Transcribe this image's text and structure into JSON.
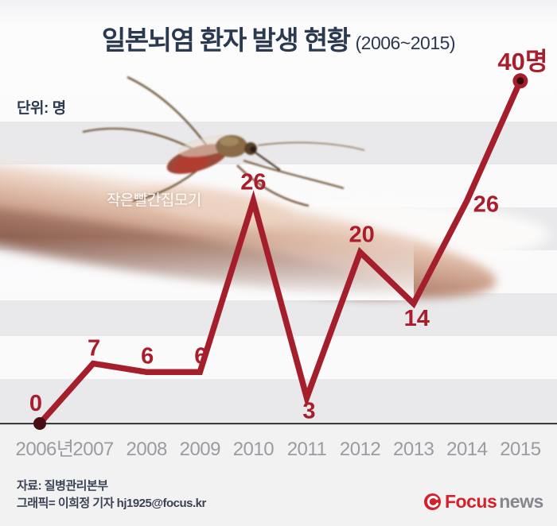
{
  "title": {
    "main": "일본뇌염 환자 발생 현황",
    "period": "(2006~2015)"
  },
  "unit_label": "단위: 명",
  "photo_caption": "작은빨간집모기",
  "chart_data": {
    "type": "line",
    "title": "일본뇌염 환자 발생 현황 (2006~2015)",
    "categories": [
      "2006년",
      "2007",
      "2008",
      "2009",
      "2010",
      "2011",
      "2012",
      "2013",
      "2014",
      "2015"
    ],
    "values": [
      0,
      7,
      6,
      6,
      26,
      3,
      20,
      14,
      26,
      40
    ],
    "value_labels": [
      "0",
      "7",
      "6",
      "6",
      "26",
      "3",
      "20",
      "14",
      "26",
      "40명"
    ],
    "unit": "명",
    "ylim": [
      0,
      40
    ],
    "grid": "horizontal bands every 5 units",
    "legend": "none",
    "line_color": "#a41e2c",
    "label_color": "#a81e2c",
    "start_dot_color": "#470f15",
    "end_dot_inner_color": "#330a0e",
    "axis_color": "#3c3c40",
    "tick_color": "#9b9ba2"
  },
  "footer": {
    "source": "자료: 질병관리본부",
    "credit": "그래픽= 이희정 기자 hj1925@focus.kr"
  },
  "logo": {
    "focus": "Focus",
    "news": "news",
    "brand_red": "#d6212b",
    "brand_gray": "#85878c"
  }
}
